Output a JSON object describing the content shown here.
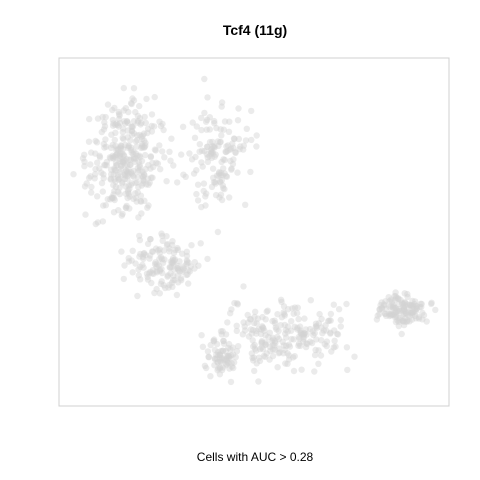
{
  "chart_data": {
    "type": "scatter",
    "title": "Tcf4 (11g)",
    "subtitle": "",
    "xlabel": "Cells with AUC > 0.28",
    "ylabel": "",
    "grid": false,
    "legend": "none",
    "point_color": "#d3d3d3",
    "point_opacity": 0.45,
    "xlim": [
      0,
      100
    ],
    "ylim": [
      0,
      100
    ],
    "regions": [
      {
        "name": "upper-left-lobe",
        "n": 330,
        "x_range": [
          3,
          30
        ],
        "y_range": [
          48,
          96
        ]
      },
      {
        "name": "upper-middle-arm",
        "n": 140,
        "x_range": [
          28,
          52
        ],
        "y_range": [
          50,
          95
        ]
      },
      {
        "name": "middle-connector",
        "n": 140,
        "x_range": [
          14,
          40
        ],
        "y_range": [
          28,
          52
        ]
      },
      {
        "name": "lower-band",
        "n": 230,
        "x_range": [
          32,
          82
        ],
        "y_range": [
          6,
          34
        ]
      },
      {
        "name": "lower-right-lobe",
        "n": 130,
        "x_range": [
          80,
          98
        ],
        "y_range": [
          20,
          34
        ]
      },
      {
        "name": "lower-left-tail",
        "n": 60,
        "x_range": [
          36,
          48
        ],
        "y_range": [
          5,
          20
        ]
      }
    ]
  }
}
